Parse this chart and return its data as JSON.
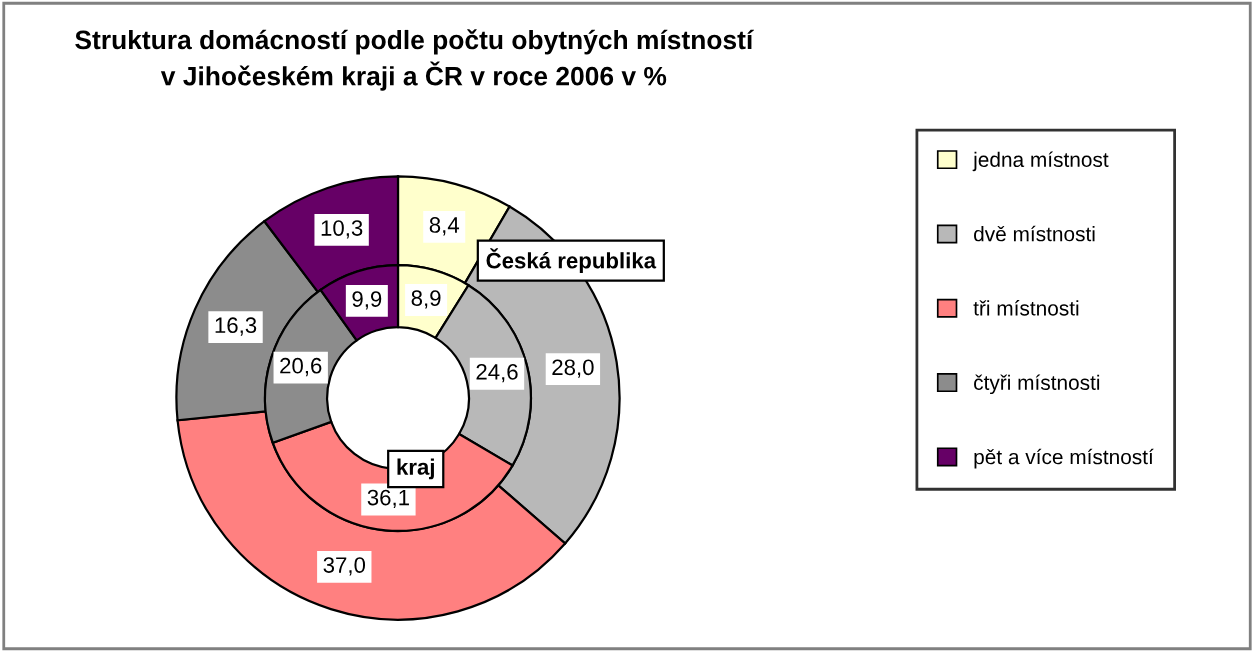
{
  "chart_data": {
    "type": "donut",
    "title": "Struktura domácností podle počtu obytných místností\nv Jihočeském kraji a ČR v roce 2006 v %",
    "categories": [
      "jedna místnost",
      "dvě místnosti",
      "tři místnosti",
      "čtyři místnosti",
      "pět a více místností"
    ],
    "colors": [
      "#ffffcc",
      "#b8b8b8",
      "#ff8080",
      "#8c8c8c",
      "#660066"
    ],
    "series": [
      {
        "name": "Česká republika",
        "values": [
          8.4,
          28.0,
          37.0,
          16.3,
          10.3
        ],
        "value_labels": [
          "8,4",
          "28,0",
          "37,0",
          "16,3",
          "10,3"
        ]
      },
      {
        "name": "kraj",
        "values": [
          8.9,
          24.6,
          36.1,
          20.6,
          9.9
        ],
        "value_labels": [
          "8,9",
          "24,6",
          "36,1",
          "20,6",
          "9,9"
        ]
      }
    ],
    "legend": "right"
  }
}
